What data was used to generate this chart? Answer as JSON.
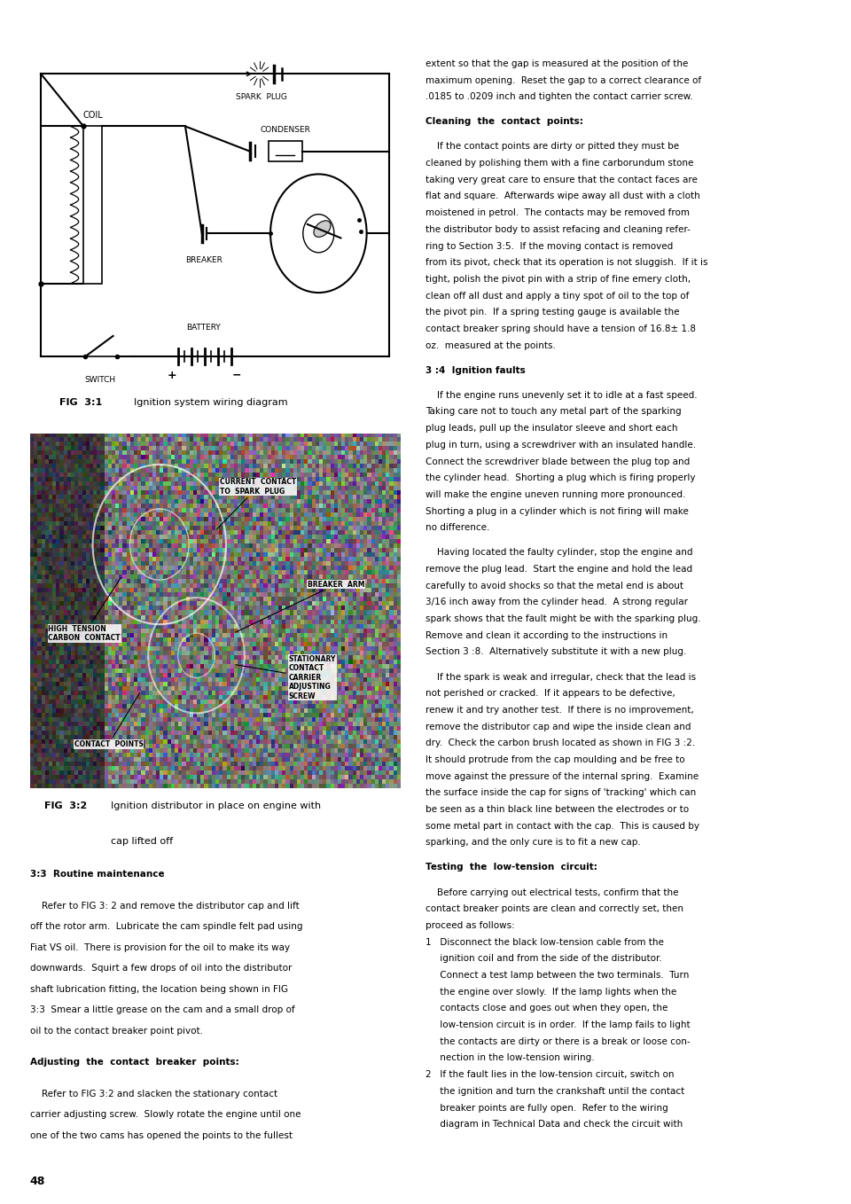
{
  "bg_color": "#ffffff",
  "page_number": "48",
  "fig1_caption_bold": "FIG  3:1",
  "fig1_caption_text": "   Ignition system wiring diagram",
  "fig2_caption_bold": "FIG  3:2",
  "fig2_caption_text": "   Ignition distributor in place on engine with\n   cap lifted off",
  "right_col_intro": "extent so that the gap is measured at the position of the\nmaximum opening.  Reset the gap to a correct clearance of\n.0185 to .0209 inch and tighten the contact carrier screw.",
  "right_col_title1": "Cleaning  the  contact  points:",
  "right_col_body1": "    If the contact points are dirty or pitted they must be\ncleaned by polishing them with a fine carborundum stone\ntaking very great care to ensure that the contact faces are\nflat and square.  Afterwards wipe away all dust with a cloth\nmoistened in petrol.  The contacts may be removed from\nthe distributor body to assist refacing and cleaning refer-\nring to Section 3:5.  If the moving contact is removed\nfrom its pivot, check that its operation is not sluggish.  If it is\ntight, polish the pivot pin with a strip of fine emery cloth,\nclean off all dust and apply a tiny spot of oil to the top of\nthe pivot pin.  If a spring testing gauge is available the\ncontact breaker spring should have a tension of 16.8± 1.8\noz.  measured at the points.",
  "right_col_title2": "3 :4  Ignition faults",
  "right_col_body2": "    If the engine runs unevenly set it to idle at a fast speed.\nTaking care not to touch any metal part of the sparking\nplug leads, pull up the insulator sleeve and short each\nplug in turn, using a screwdriver with an insulated handle.\nConnect the screwdriver blade between the plug top and\nthe cylinder head.  Shorting a plug which is firing properly\nwill make the engine uneven running more pronounced.\nShorting a plug in a cylinder which is not firing will make\nno difference.",
  "right_col_body3": "    Having located the faulty cylinder, stop the engine and\nremove the plug lead.  Start the engine and hold the lead\ncarefully to avoid shocks so that the metal end is about\n3/16 inch away from the cylinder head.  A strong regular\nspark shows that the fault might be with the sparking plug.\nRemove and clean it according to the instructions in\nSection 3 :8.  Alternatively substitute it with a new plug.",
  "right_col_body4": "    If the spark is weak and irregular, check that the lead is\nnot perished or cracked.  If it appears to be defective,\nrenew it and try another test.  If there is no improvement,\nremove the distributor cap and wipe the inside clean and\ndry.  Check the carbon brush located as shown in FIG 3 :2.\nIt should protrude from the cap moulding and be free to\nmove against the pressure of the internal spring.  Examine\nthe surface inside the cap for signs of 'tracking' which can\nbe seen as a thin black line between the electrodes or to\nsome metal part in contact with the cap.  This is caused by\nsparking, and the only cure is to fit a new cap.",
  "right_col_title3": "Testing  the  low-tension  circuit:",
  "right_col_body5": "    Before carrying out electrical tests, confirm that the\ncontact breaker points are clean and correctly set, then\nproceed as follows:",
  "right_col_body6": "1   Disconnect the black low-tension cable from the\n     ignition coil and from the side of the distributor.\n     Connect a test lamp between the two terminals.  Turn\n     the engine over slowly.  If the lamp lights when the\n     contacts close and goes out when they open, the\n     low-tension circuit is in order.  If the lamp fails to light\n     the contacts are dirty or there is a break or loose con-\n     nection in the low-tension wiring.",
  "right_col_body7": "2   If the fault lies in the low-tension circuit, switch on\n     the ignition and turn the crankshaft until the contact\n     breaker points are fully open.  Refer to the wiring\n     diagram in Technical Data and check the circuit with",
  "section_title1": "3:3  Routine maintenance",
  "section_body1": "    Refer to FIG 3: 2 and remove the distributor cap and lift\noff the rotor arm.  Lubricate the cam spindle felt pad using\nFiat VS oil.  There is provision for the oil to make its way\ndownwards.  Squirt a few drops of oil into the distributor\nshaft lubrication fitting, the location being shown in FIG\n3:3  Smear a little grease on the cam and a small drop of\noil to the contact breaker point pivot.",
  "section_title2": "Adjusting  the  contact  breaker  points:",
  "section_body2": "    Refer to FIG 3:2 and slacken the stationary contact\ncarrier adjusting screw.  Slowly rotate the engine until one\none of the two cams has opened the points to the fullest"
}
